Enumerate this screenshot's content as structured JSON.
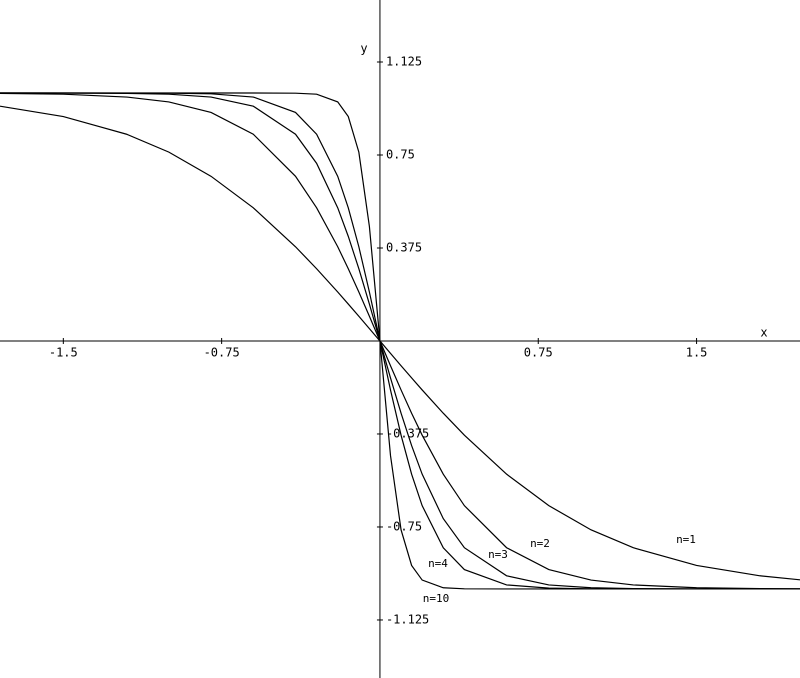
{
  "chart_data": {
    "type": "line",
    "x_label": "x",
    "y_label": "y",
    "x": [
      -1.8,
      -1.5,
      -1.2,
      -1,
      -0.8,
      -0.6,
      -0.4,
      -0.3,
      -0.2,
      -0.15,
      -0.1,
      -0.05,
      0,
      0.05,
      0.1,
      0.15,
      0.2,
      0.3,
      0.4,
      0.6,
      0.8,
      1,
      1.2,
      1.5,
      1.8,
      1.99
    ],
    "series": [
      {
        "name": "n=1",
        "color": "#000000",
        "values": [
          0.9468,
          0.9051,
          0.8337,
          0.7616,
          0.664,
          0.537,
          0.3799,
          0.2913,
          0.1974,
          0.1489,
          0.0997,
          0.05,
          0,
          -0.05,
          -0.0997,
          -0.1489,
          -0.1974,
          -0.2913,
          -0.3799,
          -0.537,
          -0.664,
          -0.7616,
          -0.8337,
          -0.9051,
          -0.9468,
          -0.963
        ]
      },
      {
        "name": "n=2",
        "color": "#000000",
        "values": [
          0.9985,
          0.9951,
          0.9837,
          0.964,
          0.9217,
          0.8337,
          0.664,
          0.537,
          0.3799,
          0.2913,
          0.1974,
          0.0997,
          0,
          -0.0997,
          -0.1974,
          -0.2913,
          -0.3799,
          -0.537,
          -0.664,
          -0.8337,
          -0.9217,
          -0.964,
          -0.9837,
          -0.9951,
          -0.9985,
          -0.9993
        ]
      },
      {
        "name": "n=3",
        "color": "#000000",
        "values": [
          0.9999,
          0.9998,
          0.9985,
          0.9951,
          0.9837,
          0.9468,
          0.8337,
          0.7163,
          0.537,
          0.4219,
          0.2913,
          0.1489,
          0,
          -0.1489,
          -0.2913,
          -0.4219,
          -0.537,
          -0.7163,
          -0.8337,
          -0.9468,
          -0.9837,
          -0.9951,
          -0.9985,
          -0.9998,
          -0.9999,
          -0.9999
        ]
      },
      {
        "name": "n=4",
        "color": "#000000",
        "values": [
          0.9999,
          0.9999,
          0.9998,
          0.9993,
          0.9967,
          0.9837,
          0.9217,
          0.8337,
          0.664,
          0.537,
          0.3799,
          0.1974,
          0,
          -0.1974,
          -0.3799,
          -0.537,
          -0.664,
          -0.8337,
          -0.9217,
          -0.9837,
          -0.9967,
          -0.9993,
          -0.9998,
          -0.9999,
          -0.9999,
          -0.9999
        ]
      },
      {
        "name": "n=10",
        "color": "#000000",
        "values": [
          0.9999,
          0.9999,
          0.9999,
          0.9999,
          0.9999,
          0.9999,
          0.9993,
          0.9951,
          0.964,
          0.9051,
          0.7616,
          0.4621,
          0,
          -0.4621,
          -0.7616,
          -0.9051,
          -0.964,
          -0.9951,
          -0.9993,
          -0.9999,
          -0.9999,
          -0.9999,
          -0.9999,
          -0.9999,
          -0.9999,
          -0.9999
        ]
      }
    ],
    "xlim": [
      -1.8,
      1.99
    ],
    "ylim": [
      -1.359,
      1.375
    ],
    "xticks": [
      -1.5,
      -0.75,
      0.75,
      1.5
    ],
    "yticks": [
      1.125,
      0.75,
      0.375,
      -0.375,
      -0.75,
      -1.125
    ]
  }
}
